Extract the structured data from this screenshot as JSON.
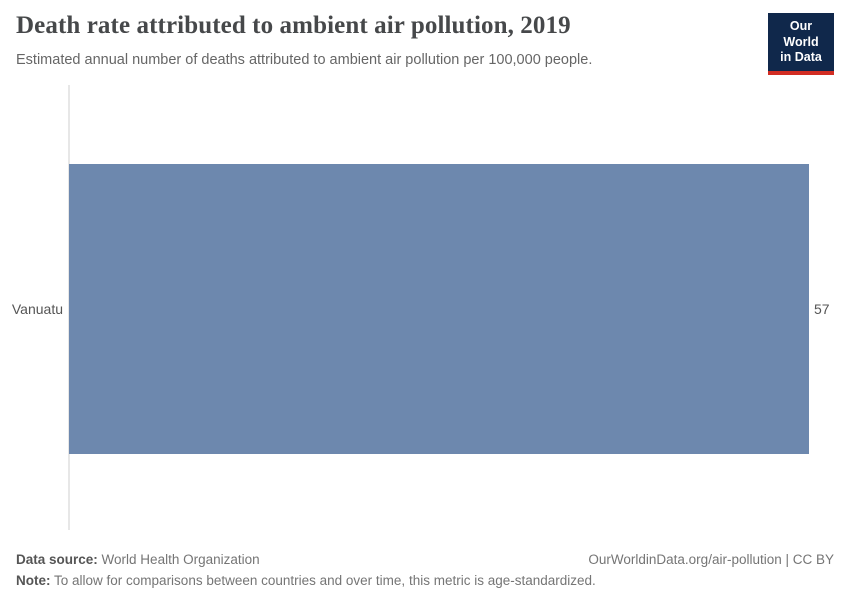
{
  "header": {
    "title": "Death rate attributed to ambient air pollution, 2019",
    "subtitle": "Estimated annual number of deaths attributed to ambient air pollution per 100,000 people."
  },
  "logo": {
    "line1": "Our World",
    "line2": "in Data"
  },
  "chart_data": {
    "type": "bar",
    "orientation": "horizontal",
    "categories": [
      "Vanuatu"
    ],
    "values": [
      57
    ],
    "value_labels": [
      "57"
    ],
    "title": "Death rate attributed to ambient air pollution, 2019",
    "xlabel": "",
    "ylabel": "",
    "xlim": [
      0,
      57
    ],
    "grid": false,
    "legend": false
  },
  "footer": {
    "data_source_label": "Data source:",
    "data_source_value": "World Health Organization",
    "note_label": "Note:",
    "note_value": "To allow for comparisons between countries and over time, this metric is age-standardized.",
    "link": "OurWorldinData.org/air-pollution | CC BY"
  },
  "colors": {
    "bar": "#6d88ae",
    "logo_bg": "#10284b",
    "logo_accent": "#d22d23",
    "axis_line": "#e7e7e7"
  }
}
